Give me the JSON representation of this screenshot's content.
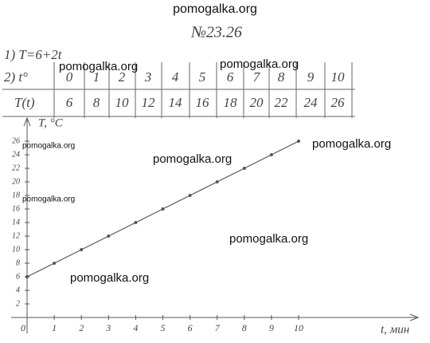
{
  "watermarks": [
    "pomogalka.org",
    "pomogalka.org",
    "pomogalka.org",
    "pomogalka.org",
    "pomogalka.org",
    "pomogalka.org",
    "pomogalka.org",
    "pomogalka.org",
    "pomogalka.org"
  ],
  "problem_number": "№23.26",
  "formula": "1) T=6+2t",
  "table": {
    "rows": [
      [
        "2) t°",
        0,
        1,
        2,
        3,
        4,
        5,
        6,
        7,
        8,
        9,
        10
      ],
      [
        "T(t)",
        6,
        8,
        10,
        12,
        14,
        16,
        18,
        20,
        22,
        24,
        26
      ]
    ]
  },
  "chart_data": {
    "type": "line",
    "x_label": "t, мин",
    "y_label": "T, °C",
    "x": [
      0,
      1,
      2,
      3,
      4,
      5,
      6,
      7,
      8,
      9,
      10
    ],
    "values": [
      6,
      8,
      10,
      12,
      14,
      16,
      18,
      20,
      22,
      24,
      26
    ],
    "color": "#555555",
    "xlim": [
      0,
      14
    ],
    "ylim": [
      0,
      29
    ],
    "xticks": [
      0,
      1,
      2,
      3,
      4,
      5,
      6,
      7,
      8,
      9,
      10
    ],
    "yticks": [
      2,
      4,
      6,
      8,
      10,
      12,
      14,
      16,
      18,
      20,
      22,
      24,
      26
    ]
  }
}
